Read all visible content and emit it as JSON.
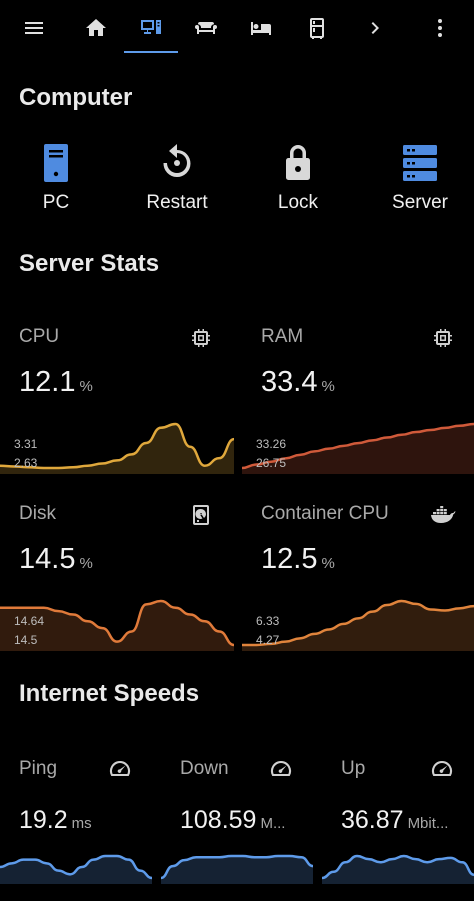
{
  "tabs": [
    {
      "name": "menu-icon"
    },
    {
      "name": "home-icon"
    },
    {
      "name": "monitor-icon",
      "active": true
    },
    {
      "name": "sofa-icon"
    },
    {
      "name": "bed-icon"
    },
    {
      "name": "fridge-icon"
    },
    {
      "name": "chevron-right-icon"
    },
    {
      "name": "more-vertical-icon"
    }
  ],
  "sections": {
    "computer": "Computer",
    "server_stats": "Server Stats",
    "internet": "Internet Speeds"
  },
  "computer_buttons": [
    {
      "label": "PC",
      "icon": "desktop-tower-icon",
      "color": "#4f8be0"
    },
    {
      "label": "Restart",
      "icon": "restart-icon",
      "color": "#d8d8d8"
    },
    {
      "label": "Lock",
      "icon": "lock-icon",
      "color": "#d8d8d8"
    },
    {
      "label": "Server",
      "icon": "server-icon",
      "color": "#4f8be0"
    }
  ],
  "stats": {
    "cpu": {
      "name": "CPU",
      "value": "12.1",
      "unit": "%",
      "max": "3.31",
      "min": "2.63",
      "color": "#e0a83c",
      "icon": "chip-icon",
      "chart_data": {
        "type": "area",
        "values": [
          2.75,
          2.74,
          2.73,
          2.72,
          2.72,
          2.73,
          2.75,
          2.78,
          2.82,
          2.9,
          3.05,
          3.25,
          3.3,
          3.0,
          2.75,
          2.85,
          3.1
        ]
      }
    },
    "ram": {
      "name": "RAM",
      "value": "33.4",
      "unit": "%",
      "max": "33.26",
      "min": "26.75",
      "color": "#d05a3a",
      "icon": "chip-icon",
      "chart_data": {
        "type": "area",
        "values": [
          26.9,
          27.4,
          27.8,
          28.3,
          28.8,
          29.3,
          29.7,
          30.1,
          30.5,
          30.9,
          31.3,
          31.7,
          32.1,
          32.4,
          32.7,
          33.0,
          33.26
        ]
      }
    },
    "disk": {
      "name": "Disk",
      "value": "14.5",
      "unit": "%",
      "max": "14.64",
      "min": "14.5",
      "color": "#e07a3a",
      "icon": "harddisk-icon",
      "chart_data": {
        "type": "area",
        "values": [
          14.62,
          14.62,
          14.62,
          14.62,
          14.61,
          14.6,
          14.58,
          14.56,
          14.52,
          14.55,
          14.63,
          14.64,
          14.62,
          14.6,
          14.58,
          14.55,
          14.51
        ]
      }
    },
    "ccpu": {
      "name": "Container CPU",
      "value": "12.5",
      "unit": "%",
      "max": "6.33",
      "min": "4.27",
      "color": "#e0843c",
      "icon": "docker-icon",
      "chart_data": {
        "type": "area",
        "values": [
          4.35,
          4.35,
          4.4,
          4.5,
          4.65,
          4.85,
          5.05,
          5.3,
          5.55,
          5.85,
          6.15,
          6.33,
          6.2,
          5.95,
          5.9,
          6.0,
          6.1
        ]
      }
    }
  },
  "internet": {
    "ping": {
      "name": "Ping",
      "value": "19.2",
      "unit": "ms",
      "icon": "speedometer-icon",
      "color": "#5e9bea",
      "chart_data": {
        "type": "area",
        "values": [
          0.45,
          0.5,
          0.55,
          0.55,
          0.5,
          0.4,
          0.35,
          0.45,
          0.55,
          0.6,
          0.6,
          0.55,
          0.4,
          0.3
        ]
      }
    },
    "down": {
      "name": "Down",
      "value": "108.59",
      "unit": "M...",
      "icon": "speedometer-icon",
      "color": "#5e9bea",
      "chart_data": {
        "type": "area",
        "values": [
          0.25,
          0.45,
          0.55,
          0.6,
          0.6,
          0.6,
          0.62,
          0.62,
          0.6,
          0.6,
          0.62,
          0.62,
          0.6,
          0.45
        ]
      }
    },
    "up": {
      "name": "Up",
      "value": "36.87",
      "unit": "Mbit...",
      "icon": "speedometer-icon",
      "color": "#5e9bea",
      "chart_data": {
        "type": "area",
        "values": [
          0.3,
          0.4,
          0.55,
          0.65,
          0.6,
          0.55,
          0.6,
          0.65,
          0.6,
          0.55,
          0.6,
          0.62,
          0.55,
          0.35
        ]
      }
    }
  }
}
